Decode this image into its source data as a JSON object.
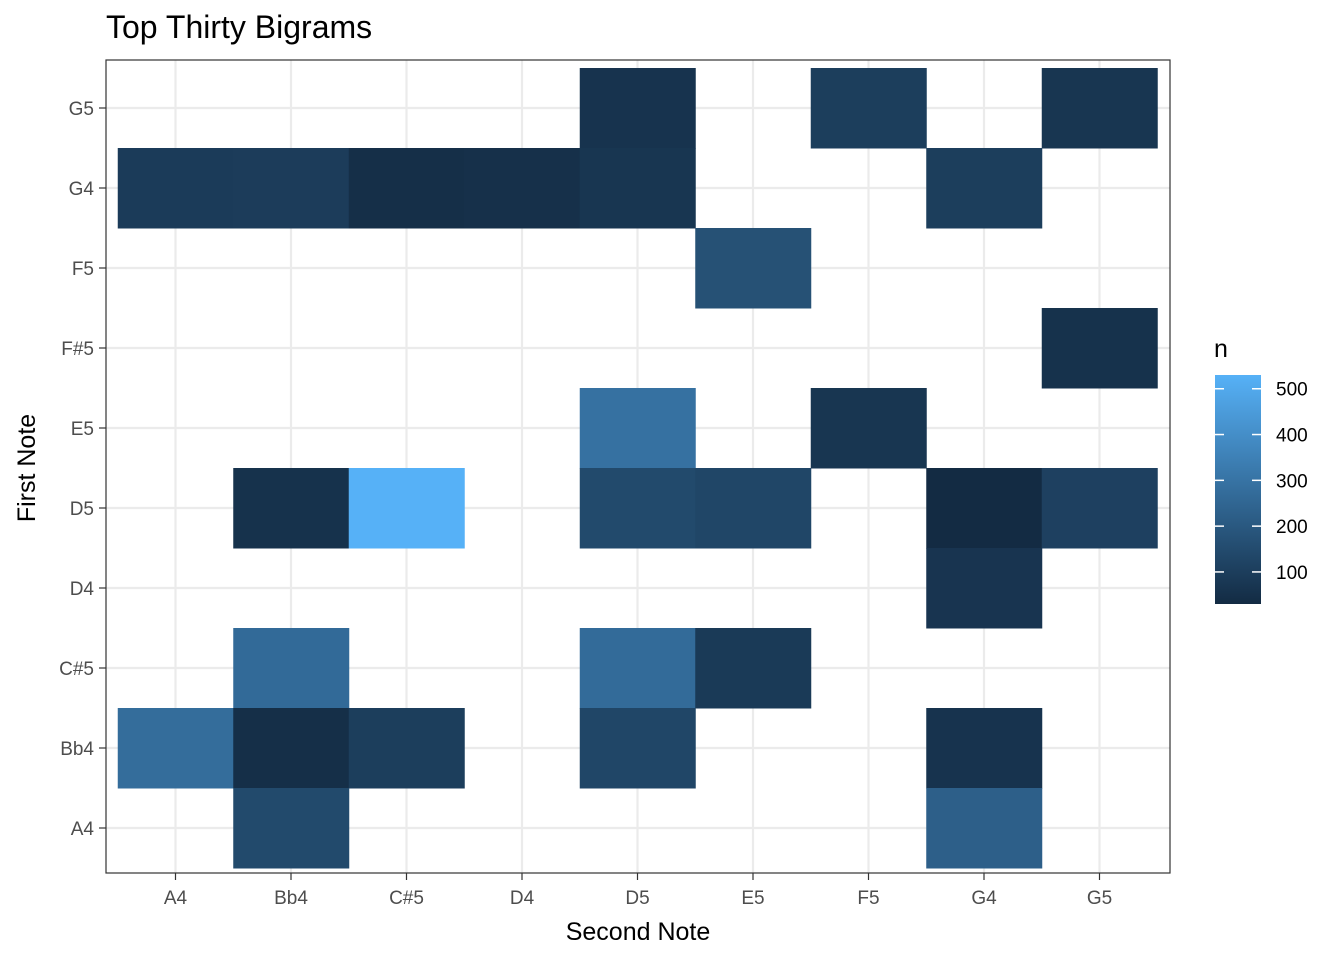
{
  "chart_data": {
    "type": "heatmap",
    "title": "Top Thirty Bigrams",
    "xlabel": "Second Note",
    "ylabel": "First Note",
    "x_categories": [
      "A4",
      "Bb4",
      "C#5",
      "D4",
      "D5",
      "E5",
      "F5",
      "G4",
      "G5"
    ],
    "y_categories": [
      "A4",
      "Bb4",
      "C#5",
      "D4",
      "D5",
      "E5",
      "F#5",
      "F5",
      "G4",
      "G5"
    ],
    "cells": [
      {
        "x": "Bb4",
        "y": "G5",
        "n": 0,
        "skip": true
      },
      {
        "x": "D5",
        "y": "G5",
        "n": 60
      },
      {
        "x": "F5",
        "y": "G5",
        "n": 100
      },
      {
        "x": "G5",
        "y": "G5",
        "n": 70
      },
      {
        "x": "A4",
        "y": "G4",
        "n": 90
      },
      {
        "x": "Bb4",
        "y": "G4",
        "n": 95
      },
      {
        "x": "C#5",
        "y": "G4",
        "n": 45
      },
      {
        "x": "D4",
        "y": "G4",
        "n": 50
      },
      {
        "x": "D5",
        "y": "G4",
        "n": 70
      },
      {
        "x": "G4",
        "y": "G4",
        "n": 100
      },
      {
        "x": "E5",
        "y": "F5",
        "n": 170
      },
      {
        "x": "G5",
        "y": "F#5",
        "n": 55
      },
      {
        "x": "D5",
        "y": "E5",
        "n": 290
      },
      {
        "x": "F5",
        "y": "E5",
        "n": 70
      },
      {
        "x": "Bb4",
        "y": "D5",
        "n": 55
      },
      {
        "x": "C#5",
        "y": "D5",
        "n": 530
      },
      {
        "x": "D5",
        "y": "D5",
        "n": 145
      },
      {
        "x": "E5",
        "y": "D5",
        "n": 130
      },
      {
        "x": "G4",
        "y": "D5",
        "n": 30
      },
      {
        "x": "G5",
        "y": "D5",
        "n": 110
      },
      {
        "x": "G4",
        "y": "D4",
        "n": 65
      },
      {
        "x": "Bb4",
        "y": "C#5",
        "n": 265
      },
      {
        "x": "D5",
        "y": "C#5",
        "n": 270
      },
      {
        "x": "E5",
        "y": "C#5",
        "n": 85
      },
      {
        "x": "A4",
        "y": "Bb4",
        "n": 275
      },
      {
        "x": "Bb4",
        "y": "Bb4",
        "n": 45
      },
      {
        "x": "C#5",
        "y": "Bb4",
        "n": 100
      },
      {
        "x": "D5",
        "y": "Bb4",
        "n": 130
      },
      {
        "x": "G4",
        "y": "Bb4",
        "n": 60
      },
      {
        "x": "Bb4",
        "y": "A4",
        "n": 145
      },
      {
        "x": "G4",
        "y": "A4",
        "n": 225
      }
    ],
    "legend": {
      "title": "n",
      "ticks": [
        100,
        200,
        300,
        400,
        500
      ],
      "tick_labels": [
        "100",
        "200",
        "300",
        "400",
        "500"
      ],
      "min": 30,
      "max": 530,
      "low_color": "#132b43",
      "high_color": "#56b1f7",
      "placement": "right"
    },
    "grid": true,
    "panel_border": true
  }
}
